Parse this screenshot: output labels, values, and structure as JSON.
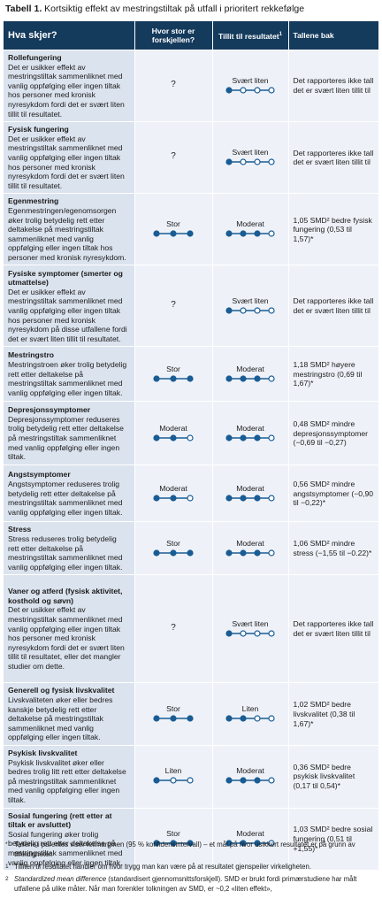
{
  "caption": {
    "number": "Tabell 1.",
    "text": "Kortsiktig effekt av mestringstiltak på utfall i prioritert rekkefølge"
  },
  "headers": {
    "what": "Hva skjer?",
    "size": "Hvor stor er forskjellen?",
    "trust": "Tillit til resultatet",
    "trust_sup": "1",
    "numbers": "Tallene bak"
  },
  "colors": {
    "header_bg": "#143a5c",
    "label_bg": "#dbe3ee",
    "cell_bg": "#eef2f8",
    "dot": "#1a5c94"
  },
  "rows": [
    {
      "outcome": "Rollefungering",
      "desc": "Det er usikker effekt av mestringstiltak sammenliknet med vanlig oppfølging eller ingen tiltak hos personer med kronisk nyresykdom fordi det er svært liten tillit til resultatet.",
      "size": "?",
      "size_dots": null,
      "trust": "Svært liten",
      "trust_level": 1,
      "numbers": "Det rapporteres ikke tall det er svært liten tillit til"
    },
    {
      "outcome": "Fysisk fungering",
      "desc": "Det er usikker effekt av mestringstiltak sammenliknet med vanlig oppfølging eller ingen tiltak hos personer med kronisk nyresykdom fordi det er svært liten tillit til resultatet.",
      "size": "?",
      "size_dots": null,
      "trust": "Svært liten",
      "trust_level": 1,
      "numbers": "Det rapporteres ikke tall det er svært liten tillit til"
    },
    {
      "outcome": "Egenmestring",
      "desc": "Egenmestringen/egenomsorgen øker trolig betydelig rett etter deltakelse på mestringstiltak sammenliknet med vanlig oppfølging eller ingen tiltak hos personer med kronisk nyresykdom.",
      "size": "Stor",
      "size_dots": 3,
      "trust": "Moderat",
      "trust_level": 3,
      "numbers": "1,05 SMD² bedre fysisk fungering (0,53 til 1,57)*"
    },
    {
      "outcome": "Fysiske symptomer (smerter og utmattelse)",
      "desc": "Det er usikker effekt av mestringstiltak sammenliknet med vanlig oppfølging eller ingen tiltak hos personer med kronisk nyresykdom på disse utfallene fordi det er svært liten tillit til resultatet.",
      "size": "?",
      "size_dots": null,
      "trust": "Svært liten",
      "trust_level": 1,
      "numbers": "Det rapporteres ikke tall det er svært liten tillit til"
    },
    {
      "outcome": "Mestringstro",
      "desc": "Mestringstroen øker trolig betydelig rett etter deltakelse på mestringstiltak sammenliknet med vanlig oppfølging eller ingen tiltak.",
      "size": "Stor",
      "size_dots": 3,
      "trust": "Moderat",
      "trust_level": 3,
      "numbers": "1,18 SMD² høyere mestringstro (0,69 til 1,67)*"
    },
    {
      "outcome": "Depresjonssymptomer",
      "desc": "Depresjonssymptomer reduseres trolig betydelig rett etter deltakelse på mestringstiltak sammenliknet med vanlig oppfølging eller ingen tiltak.",
      "size": "Moderat",
      "size_dots": 2,
      "trust": "Moderat",
      "trust_level": 3,
      "numbers": "0,48 SMD² mindre depresjonssymptomer (−0,69 til −0,27)"
    },
    {
      "outcome": "Angstsymptomer",
      "desc": "Angstsymptomer reduseres trolig betydelig rett etter deltakelse på mestringstiltak sammenliknet med vanlig oppfølging eller ingen tiltak.",
      "size": "Moderat",
      "size_dots": 2,
      "trust": "Moderat",
      "trust_level": 3,
      "numbers": "0,56 SMD² mindre angstsymptomer (−0,90 til −0,22)*"
    },
    {
      "outcome": "Stress",
      "desc": "Stress reduseres trolig betydelig rett etter deltakelse på mestringstiltak sammenliknet med vanlig oppfølging eller ingen tiltak.",
      "size": "Stor",
      "size_dots": 3,
      "trust": "Moderat",
      "trust_level": 3,
      "numbers": "1,06 SMD² mindre stress (−1,55 til −0.22)*"
    },
    {
      "outcome": "Vaner og atferd (fysisk aktivitet, kosthold og søvn)",
      "desc": "Det er usikker effekt av mestringstiltak sammenliknet med vanlig oppfølging eller ingen tiltak hos personer med kronisk nyresykdom fordi det er svært liten tillit til resultatet, eller det mangler studier om dette.",
      "size": "?",
      "size_dots": null,
      "trust": "Svært liten",
      "trust_level": 1,
      "numbers": "Det rapporteres ikke tall det er svært liten tillit til"
    },
    {
      "outcome": "Generell og fysisk livskvalitet",
      "desc": "Livskvaliteten øker eller bedres kanskje betydelig rett etter deltakelse på mestringstiltak sammenliknet med vanlig oppfølging eller ingen tiltak.",
      "size": "Stor",
      "size_dots": 3,
      "trust": "Liten",
      "trust_level": 2,
      "numbers": "1,02 SMD² bedre livskvalitet (0,38 til 1,67)*"
    },
    {
      "outcome": "Psykisk livskvalitet",
      "desc": "Psykisk livskvalitet øker eller bedres trolig litt rett etter deltakelse på mestringstiltak sammenliknet med vanlig oppfølging eller ingen tiltak.",
      "size": "Liten",
      "size_dots": 1,
      "trust": "Moderat",
      "trust_level": 3,
      "numbers": "0,36 SMD² bedre psykisk livskvalitet (0,17 til 0,54)*"
    },
    {
      "outcome": "Sosial fungering (rett etter at tiltak er avsluttet)",
      "desc": "Sosial fungering øker trolig betydelig rett etter deltakelse på mestringstiltak sammenliknet med vanlig oppfølging eller ingen tiltak.",
      "size": "Stor",
      "size_dots": 3,
      "trust": "Moderat",
      "trust_level": 3,
      "numbers": "1,03 SMD² bedre sosial fungering (0,51 til +1,55)*"
    }
  ],
  "footnotes": [
    {
      "mark": "*",
      "text": "Tallene i parentes viser feilmarginen (95 % konfidensintervall) – et mål på hvor usikkert resultatet er på grunn av tilfeldigheter."
    },
    {
      "mark": "1",
      "text": "Tilliten til resultatet handler om hvor trygg man kan være på at resultatet gjenspeiler virkeligheten."
    },
    {
      "mark": "2",
      "em": "Standardized mean difference",
      "text": " (standardisert gjennomsnittsforskjell). SMD er brukt fordi primærstudiene har målt utfallene på ulike måter. Når man forenkler tolkningen av SMD, er ~0,2 «liten effekt»,"
    }
  ]
}
